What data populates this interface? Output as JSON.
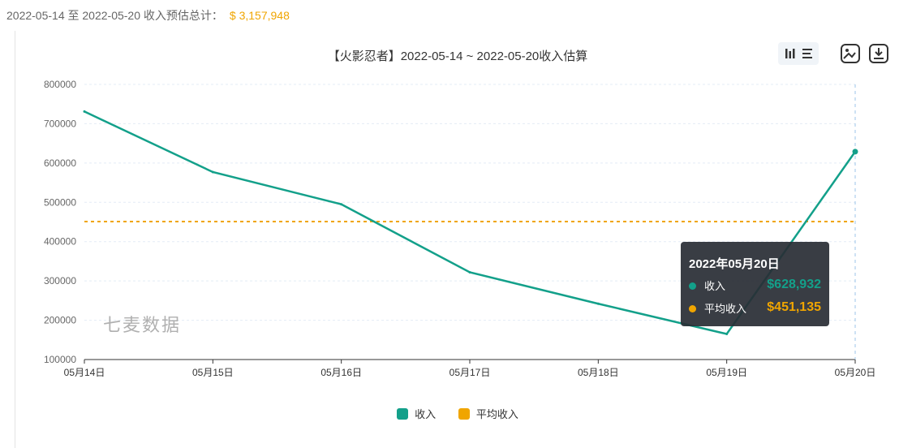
{
  "summary": {
    "text": "2022-05-14 至 2022-05-20 收入预估总计：",
    "total": "$ 3,157,948"
  },
  "toolbar": {
    "icons": [
      "bar-chart-icon",
      "list-icon",
      "image-icon",
      "download-icon"
    ]
  },
  "watermark": "七麦数据",
  "tooltip": {
    "title": "2022年05月20日",
    "rows": [
      {
        "label": "收入",
        "value": "$628,932",
        "color": "#13a08a"
      },
      {
        "label": "平均收入",
        "value": "$451,135",
        "color": "#f0a500"
      }
    ]
  },
  "chart_data": {
    "type": "line",
    "title": "【火影忍者】2022-05-14 ~ 2022-05-20收入估算",
    "categories": [
      "05月14日",
      "05月15日",
      "05月16日",
      "05月17日",
      "05月18日",
      "05月19日",
      "05月20日"
    ],
    "series": [
      {
        "name": "收入",
        "color": "#13a08a",
        "values": [
          731000,
          577000,
          495000,
          322000,
          242000,
          165000,
          628932
        ]
      },
      {
        "name": "平均收入",
        "color": "#f0a500",
        "style": "dashed",
        "values": [
          451135,
          451135,
          451135,
          451135,
          451135,
          451135,
          451135
        ]
      }
    ],
    "yticks": [
      "800000",
      "700000",
      "600000",
      "500000",
      "400000",
      "300000",
      "200000",
      "100000"
    ],
    "ylim": [
      100000,
      800000
    ],
    "legend": "bottom-center",
    "grid": true
  }
}
